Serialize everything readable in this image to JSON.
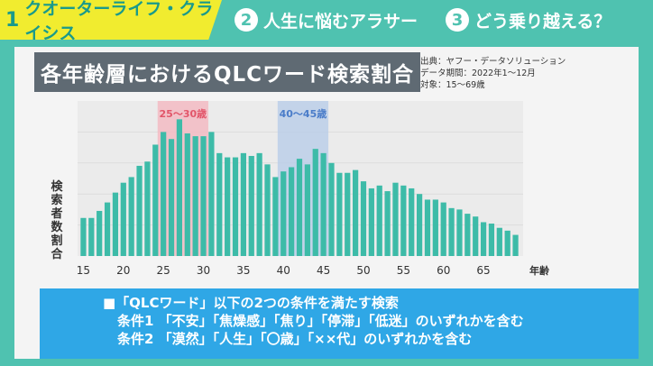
{
  "tabs": [
    {
      "num": "1",
      "label": "クオーターライフ・クライシス"
    },
    {
      "num": "2",
      "label": "人生に悩むアラサー"
    },
    {
      "num": "3",
      "label": "どう乗り越える？"
    }
  ],
  "card": {
    "title": "各年齢層におけるQLCワード検索割合",
    "source_lines": [
      "出典：ヤフー・データソリューション",
      "データ期間：2022年1〜12月",
      "対象：15〜69歳"
    ]
  },
  "conditions": {
    "line1": "■「QLCワード」以下の2つの条件を満たす検索",
    "line2": "条件1 「不安」「焦燥感」「焦り」「停滞」「低迷」のいずれかを含む",
    "line3": "条件2 「漠然」「人生」「〇歳」「××代」のいずれかを含む"
  },
  "colors": {
    "bar": "#3dbba8",
    "highlight1": "#f4b8c0",
    "highlight2": "#b9cde8",
    "highlight1_text": "#e2566a",
    "highlight2_text": "#4a7cc9"
  },
  "chart_data": {
    "type": "bar",
    "ylabel": "検索者数割合",
    "xlabel": "年齢",
    "x": [
      15,
      16,
      17,
      18,
      19,
      20,
      21,
      22,
      23,
      24,
      25,
      26,
      27,
      28,
      29,
      30,
      31,
      32,
      33,
      34,
      35,
      36,
      37,
      38,
      39,
      40,
      41,
      42,
      43,
      44,
      45,
      46,
      47,
      48,
      49,
      50,
      51,
      52,
      53,
      54,
      55,
      56,
      57,
      58,
      59,
      60,
      61,
      62,
      63,
      64,
      65,
      66,
      67,
      68,
      69
    ],
    "values": [
      27,
      27,
      32,
      38,
      45,
      52,
      56,
      64,
      67,
      79,
      88,
      83,
      97,
      87,
      85,
      85,
      88,
      73,
      70,
      70,
      73,
      71,
      73,
      65,
      56,
      60,
      63,
      69,
      65,
      76,
      73,
      66,
      59,
      59,
      61,
      53,
      48,
      50,
      46,
      52,
      50,
      48,
      44,
      40,
      40,
      38,
      34,
      33,
      30,
      28,
      24,
      23,
      20,
      18,
      15
    ],
    "ylim": [
      0,
      110
    ],
    "xticks": [
      15,
      20,
      25,
      30,
      35,
      40,
      45,
      50,
      55,
      60,
      65
    ],
    "highlights": [
      {
        "label": "25〜30歳",
        "from": 25,
        "to": 30
      },
      {
        "label": "40〜45歳",
        "from": 40,
        "to": 45
      }
    ]
  }
}
